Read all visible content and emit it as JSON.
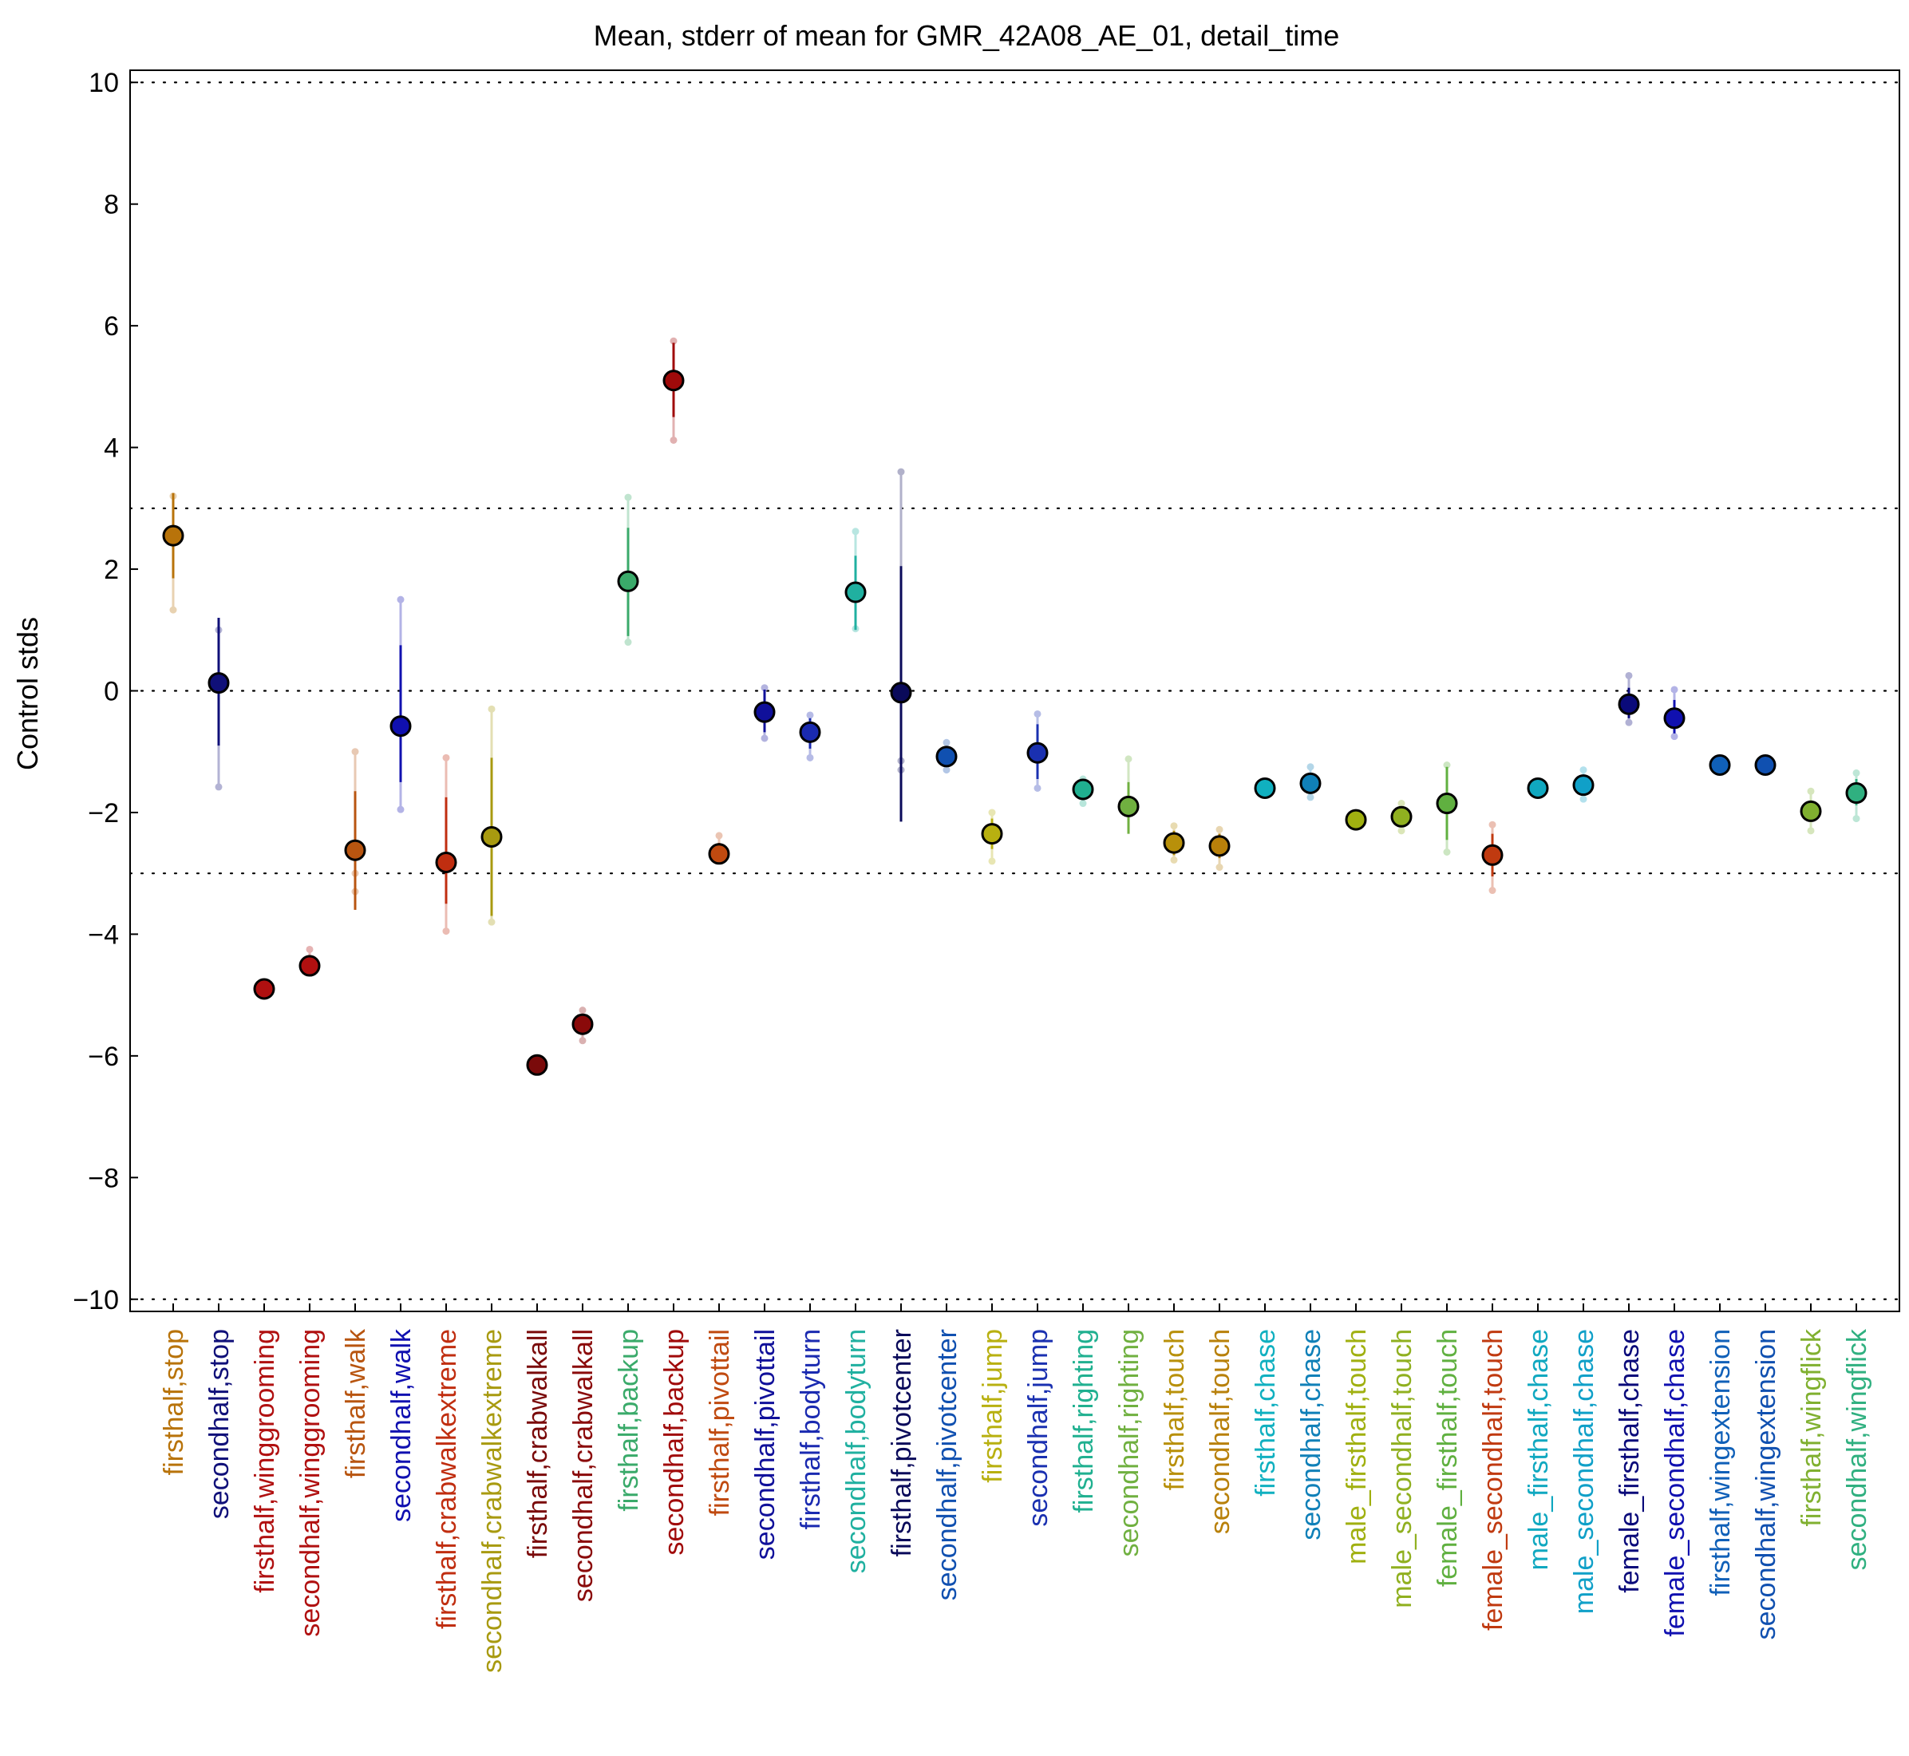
{
  "chart_data": {
    "type": "scatter",
    "title": "Mean, stderr of mean for GMR_42A08_AE_01, detail_time",
    "ylabel": "Control stds",
    "xlabel": "",
    "ylim": [
      -10.2,
      10.2
    ],
    "yticks": [
      "−10",
      "−8",
      "−6",
      "−4",
      "−2",
      "0",
      "2",
      "4",
      "6",
      "8",
      "10"
    ],
    "ytick_values": [
      -10,
      -8,
      -6,
      -4,
      -2,
      0,
      2,
      4,
      6,
      8,
      10
    ],
    "reference_lines": [
      -10,
      -3,
      0,
      3,
      10
    ],
    "grid": false,
    "points": [
      {
        "label": "firsthalf,stop",
        "color": "#b8730a",
        "mean": 2.55,
        "err_low": 1.85,
        "err_high": 3.25,
        "extra": [
          1.33,
          3.2
        ]
      },
      {
        "label": "secondhalf,stop",
        "color": "#101079",
        "mean": 0.13,
        "err_low": -0.9,
        "err_high": 1.2,
        "extra": [
          -1.58,
          1.0
        ]
      },
      {
        "label": "firsthalf,winggrooming",
        "color": "#b01010",
        "mean": -4.9,
        "err_low": -4.97,
        "err_high": -4.82,
        "extra": []
      },
      {
        "label": "secondhalf,winggrooming",
        "color": "#b01010",
        "mean": -4.52,
        "err_low": -4.6,
        "err_high": -4.4,
        "extra": [
          -4.25
        ]
      },
      {
        "label": "firsthalf,walk",
        "color": "#b85510",
        "mean": -2.62,
        "err_low": -3.6,
        "err_high": -1.65,
        "extra": [
          -1.0,
          -3.0,
          -3.3
        ]
      },
      {
        "label": "secondhalf,walk",
        "color": "#1010b0",
        "mean": -0.58,
        "err_low": -1.5,
        "err_high": 0.75,
        "extra": [
          1.5,
          -1.95
        ]
      },
      {
        "label": "firsthalf,crabwalkextreme",
        "color": "#c02e10",
        "mean": -2.82,
        "err_low": -3.5,
        "err_high": -1.75,
        "extra": [
          -1.1,
          -3.95
        ]
      },
      {
        "label": "secondhalf,crabwalkextreme",
        "color": "#a89a10",
        "mean": -2.4,
        "err_low": -3.7,
        "err_high": -1.1,
        "extra": [
          -0.3,
          -3.8
        ]
      },
      {
        "label": "firsthalf,crabwalkall",
        "color": "#7a0a0a",
        "mean": -6.15,
        "err_low": -6.2,
        "err_high": -6.1,
        "extra": []
      },
      {
        "label": "secondhalf,crabwalkall",
        "color": "#8a0a0a",
        "mean": -5.48,
        "err_low": -5.6,
        "err_high": -5.35,
        "extra": [
          -5.25,
          -5.75
        ]
      },
      {
        "label": "firsthalf,backup",
        "color": "#3aaa6a",
        "mean": 1.8,
        "err_low": 0.9,
        "err_high": 2.68,
        "extra": [
          3.18,
          0.8
        ]
      },
      {
        "label": "secondhalf,backup",
        "color": "#a00a0a",
        "mean": 5.1,
        "err_low": 4.5,
        "err_high": 5.72,
        "extra": [
          5.75,
          4.12
        ]
      },
      {
        "label": "firsthalf,pivottail",
        "color": "#c04a10",
        "mean": -2.68,
        "err_low": -2.85,
        "err_high": -2.5,
        "extra": [
          -2.38
        ]
      },
      {
        "label": "secondhalf,pivottail",
        "color": "#10109a",
        "mean": -0.35,
        "err_low": -0.68,
        "err_high": 0.02,
        "extra": [
          -0.78,
          0.05
        ]
      },
      {
        "label": "firsthalf,bodyturn",
        "color": "#1a2ab0",
        "mean": -0.68,
        "err_low": -0.95,
        "err_high": -0.45,
        "extra": [
          -1.1,
          -0.4
        ]
      },
      {
        "label": "secondhalf,bodyturn",
        "color": "#20b0a0",
        "mean": 1.62,
        "err_low": 1.0,
        "err_high": 2.22,
        "extra": [
          2.62,
          1.02
        ]
      },
      {
        "label": "firsthalf,pivotcenter",
        "color": "#0a0a5a",
        "mean": -0.03,
        "err_low": -2.15,
        "err_high": 2.05,
        "extra": [
          3.6,
          -1.15,
          -1.3
        ]
      },
      {
        "label": "secondhalf,pivotcenter",
        "color": "#1050b0",
        "mean": -1.08,
        "err_low": -1.2,
        "err_high": -0.95,
        "extra": [
          -0.85,
          -1.3
        ]
      },
      {
        "label": "firsthalf,jump",
        "color": "#b8b010",
        "mean": -2.35,
        "err_low": -2.6,
        "err_high": -2.1,
        "extra": [
          -2.8,
          -2.0
        ]
      },
      {
        "label": "secondhalf,jump",
        "color": "#1a30b0",
        "mean": -1.02,
        "err_low": -1.45,
        "err_high": -0.55,
        "extra": [
          -0.38,
          -1.6
        ]
      },
      {
        "label": "firsthalf,righting",
        "color": "#20b090",
        "mean": -1.62,
        "err_low": -1.75,
        "err_high": -1.5,
        "extra": [
          -1.45,
          -1.85
        ]
      },
      {
        "label": "secondhalf,righting",
        "color": "#70b040",
        "mean": -1.9,
        "err_low": -2.35,
        "err_high": -1.5,
        "extra": [
          -1.12
        ]
      },
      {
        "label": "firsthalf,touch",
        "color": "#b8900a",
        "mean": -2.5,
        "err_low": -2.7,
        "err_high": -2.3,
        "extra": [
          -2.22,
          -2.78
        ]
      },
      {
        "label": "secondhalf,touch",
        "color": "#b8800a",
        "mean": -2.55,
        "err_low": -2.75,
        "err_high": -2.35,
        "extra": [
          -2.28,
          -2.9
        ]
      },
      {
        "label": "firsthalf,chase",
        "color": "#10b0c0",
        "mean": -1.6,
        "err_low": -1.67,
        "err_high": -1.53,
        "extra": []
      },
      {
        "label": "secondhalf,chase",
        "color": "#1080b8",
        "mean": -1.52,
        "err_low": -1.65,
        "err_high": -1.38,
        "extra": [
          -1.25,
          -1.75
        ]
      },
      {
        "label": "male_firsthalf,touch",
        "color": "#a0b010",
        "mean": -2.12,
        "err_low": -2.18,
        "err_high": -2.05,
        "extra": []
      },
      {
        "label": "male_secondhalf,touch",
        "color": "#90b020",
        "mean": -2.07,
        "err_low": -2.22,
        "err_high": -1.92,
        "extra": [
          -1.85,
          -2.3
        ]
      },
      {
        "label": "female_firsthalf,touch",
        "color": "#60b040",
        "mean": -1.85,
        "err_low": -2.45,
        "err_high": -1.25,
        "extra": [
          -1.22,
          -2.65
        ]
      },
      {
        "label": "female_secondhalf,touch",
        "color": "#c03a10",
        "mean": -2.7,
        "err_low": -3.05,
        "err_high": -2.35,
        "extra": [
          -2.2,
          -3.28
        ]
      },
      {
        "label": "male_firsthalf,chase",
        "color": "#10a8c0",
        "mean": -1.6,
        "err_low": -1.67,
        "err_high": -1.53,
        "extra": []
      },
      {
        "label": "male_secondhalf,chase",
        "color": "#10a0c8",
        "mean": -1.55,
        "err_low": -1.68,
        "err_high": -1.42,
        "extra": [
          -1.3,
          -1.78
        ]
      },
      {
        "label": "female_firsthalf,chase",
        "color": "#0a0a7a",
        "mean": -0.22,
        "err_low": -0.45,
        "err_high": 0.05,
        "extra": [
          0.25,
          -0.52
        ]
      },
      {
        "label": "female_secondhalf,chase",
        "color": "#1010b0",
        "mean": -0.45,
        "err_low": -0.7,
        "err_high": -0.15,
        "extra": [
          0.02,
          -0.75
        ]
      },
      {
        "label": "firsthalf,wingextension",
        "color": "#1060b8",
        "mean": -1.22,
        "err_low": -1.28,
        "err_high": -1.16,
        "extra": []
      },
      {
        "label": "secondhalf,wingextension",
        "color": "#1050b0",
        "mean": -1.22,
        "err_low": -1.28,
        "err_high": -1.16,
        "extra": []
      },
      {
        "label": "firsthalf,wingflick",
        "color": "#80b030",
        "mean": -1.98,
        "err_low": -2.15,
        "err_high": -1.8,
        "extra": [
          -1.65,
          -2.3
        ]
      },
      {
        "label": "secondhalf,wingflick",
        "color": "#30b080",
        "mean": -1.68,
        "err_low": -1.88,
        "err_high": -1.45,
        "extra": [
          -1.35,
          -2.1
        ]
      }
    ]
  }
}
